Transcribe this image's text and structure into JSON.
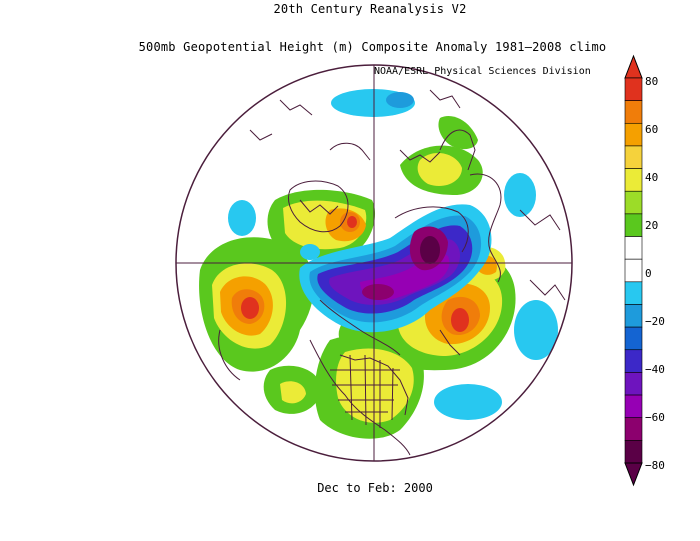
{
  "title_line1": "20th Century Reanalysis V2",
  "title_line2": "500mb Geopotential Height (m) Composite Anomaly 1981–2008 climo",
  "credit": "NOAA/ESRL Physical Sciences Division",
  "footer": "Dec to Feb: 2000",
  "colorbar": {
    "ticks": [
      "80",
      "60",
      "40",
      "20",
      "0",
      "−20",
      "−40",
      "−60",
      "−80"
    ],
    "colors": [
      "#e0321e",
      "#f07d0a",
      "#f5a000",
      "#f5d23c",
      "#ebeb37",
      "#9cdc28",
      "#5ac81e",
      "#ffffff",
      "#ffffff",
      "#28c8f0",
      "#1e9bdc",
      "#1464d2",
      "#3c28c8",
      "#6e14be",
      "#9600b4",
      "#8c006e",
      "#5a0046"
    ]
  },
  "map": {
    "projection": "north-polar-stereographic",
    "contour_color": "#4b1e3c"
  }
}
